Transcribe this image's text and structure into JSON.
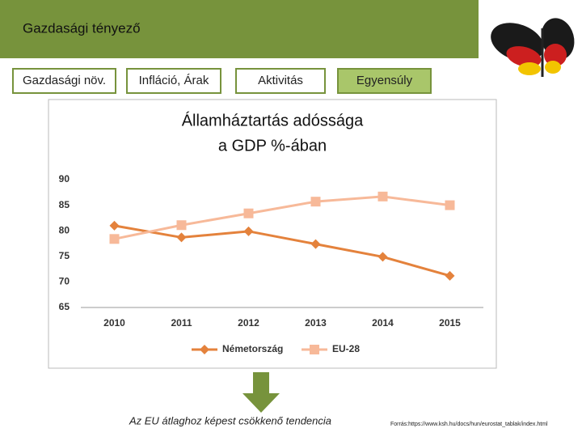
{
  "header": {
    "title": "Gazdasági tényező"
  },
  "tabs": [
    "Gazdasági növ.",
    "Infláció, Árak",
    "Aktivitás",
    "Egyensúly"
  ],
  "chart_data": {
    "type": "line",
    "title": [
      "Államháztartás  adóssága",
      "a GDP %-ában"
    ],
    "categories": [
      "2010",
      "2011",
      "2012",
      "2013",
      "2014",
      "2015"
    ],
    "series": [
      {
        "name": "Németország",
        "color": "#e4823c",
        "marker": "diamond",
        "values": [
          81.0,
          78.7,
          79.9,
          77.4,
          74.9,
          71.2
        ]
      },
      {
        "name": "EU-28",
        "color": "#f7b999",
        "marker": "square",
        "values": [
          78.4,
          81.1,
          83.4,
          85.7,
          86.7,
          85.0
        ]
      }
    ],
    "ylim": [
      65,
      90
    ],
    "yticks": [
      65,
      70,
      75,
      80,
      85,
      90
    ],
    "grid": false,
    "legend": "bottom"
  },
  "caption": "Az EU átlaghoz képest csökkenő tendencia",
  "source": "Forrás:https://www.ksh.hu/docs/hun/eurostat_tablak/index.html"
}
